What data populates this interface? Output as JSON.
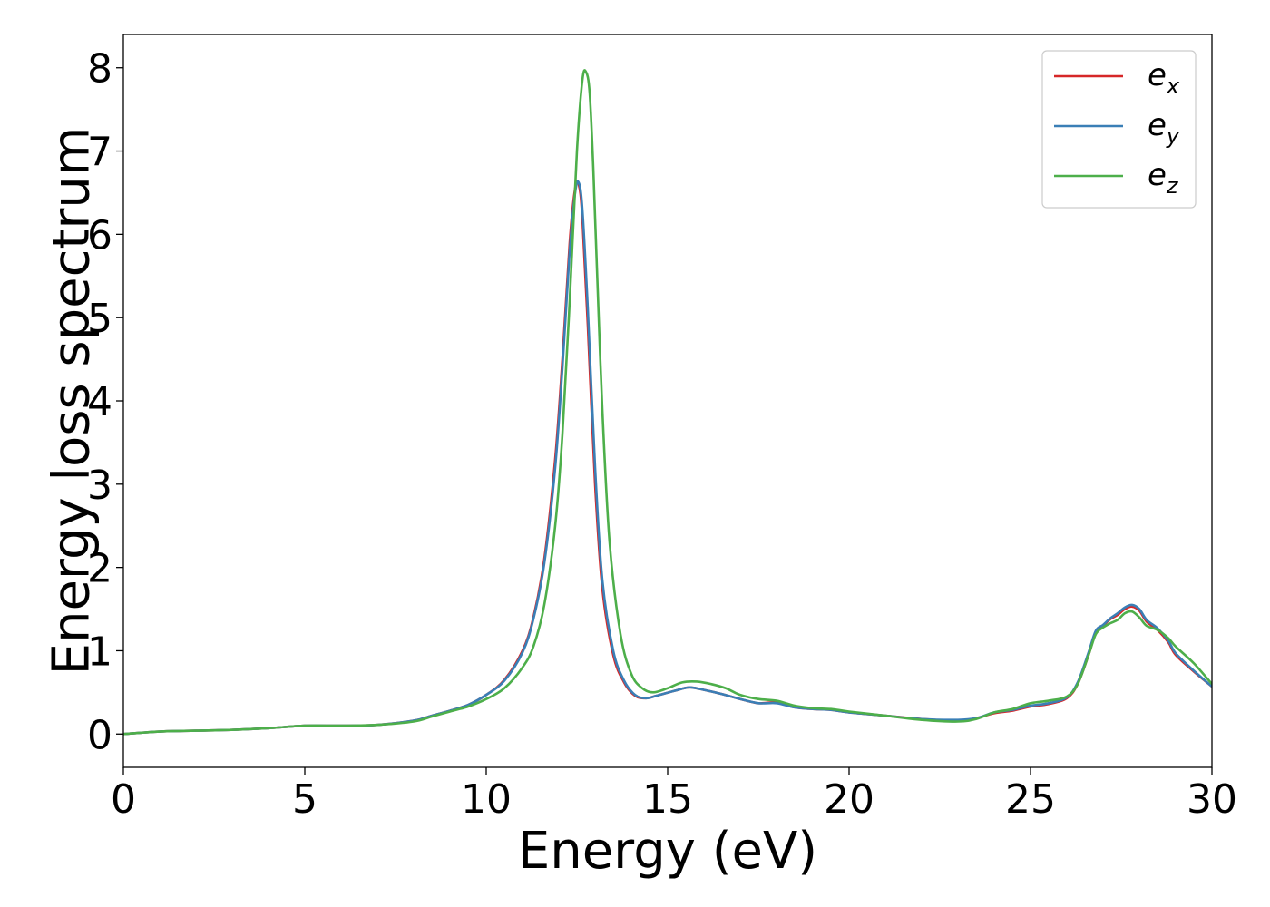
{
  "chart_data": {
    "type": "line",
    "xlabel": "Energy (eV)",
    "ylabel": "Energy loss spectrum",
    "xlim": [
      0,
      30
    ],
    "ylim": [
      -0.4,
      8.4
    ],
    "xticks": [
      "0",
      "5",
      "10",
      "15",
      "20",
      "25",
      "30"
    ],
    "yticks": [
      "0",
      "1",
      "2",
      "3",
      "4",
      "5",
      "6",
      "7",
      "8"
    ],
    "grid": false,
    "legend_position": "top-right",
    "series": [
      {
        "name": "e",
        "subscript": "x",
        "color": "#d62728",
        "x": [
          0,
          1,
          2,
          3,
          4,
          5,
          6,
          7,
          8,
          8.5,
          9,
          9.5,
          10,
          10.5,
          11,
          11.3,
          11.6,
          11.9,
          12.1,
          12.3,
          12.45,
          12.55,
          12.65,
          12.8,
          13.0,
          13.2,
          13.5,
          13.8,
          14.1,
          14.4,
          14.7,
          15.2,
          15.6,
          16.0,
          16.5,
          17.0,
          17.5,
          18.0,
          18.5,
          19.0,
          19.5,
          20.0,
          21.0,
          22.0,
          23.0,
          23.5,
          24.0,
          24.5,
          25.0,
          25.5,
          26.0,
          26.3,
          26.6,
          26.8,
          27.0,
          27.2,
          27.4,
          27.6,
          27.8,
          28.0,
          28.2,
          28.5,
          28.8,
          29.0,
          29.5,
          30.0
        ],
        "y": [
          0.0,
          0.03,
          0.04,
          0.05,
          0.07,
          0.1,
          0.1,
          0.11,
          0.16,
          0.22,
          0.28,
          0.35,
          0.47,
          0.65,
          1.0,
          1.4,
          2.1,
          3.3,
          4.5,
          5.9,
          6.55,
          6.6,
          6.2,
          4.9,
          3.0,
          1.75,
          0.95,
          0.62,
          0.46,
          0.43,
          0.46,
          0.52,
          0.56,
          0.53,
          0.48,
          0.42,
          0.37,
          0.38,
          0.32,
          0.3,
          0.29,
          0.26,
          0.22,
          0.18,
          0.16,
          0.19,
          0.25,
          0.28,
          0.33,
          0.36,
          0.43,
          0.6,
          0.95,
          1.22,
          1.3,
          1.38,
          1.43,
          1.5,
          1.53,
          1.48,
          1.35,
          1.25,
          1.1,
          0.95,
          0.75,
          0.57
        ]
      },
      {
        "name": "e",
        "subscript": "y",
        "color": "#3a7fb6",
        "x": [
          0,
          1,
          2,
          3,
          4,
          5,
          6,
          7,
          8,
          8.5,
          9,
          9.5,
          10,
          10.5,
          11,
          11.3,
          11.6,
          11.9,
          12.1,
          12.3,
          12.45,
          12.55,
          12.65,
          12.8,
          13.0,
          13.2,
          13.5,
          13.8,
          14.1,
          14.4,
          14.7,
          15.2,
          15.6,
          16.0,
          16.5,
          17.0,
          17.5,
          18.0,
          18.5,
          19.0,
          19.5,
          20.0,
          21.0,
          22.0,
          23.0,
          23.5,
          24.0,
          24.5,
          25.0,
          25.5,
          26.0,
          26.3,
          26.6,
          26.8,
          27.0,
          27.2,
          27.4,
          27.6,
          27.8,
          28.0,
          28.2,
          28.5,
          28.8,
          29.0,
          29.5,
          30.0
        ],
        "y": [
          0.0,
          0.03,
          0.04,
          0.05,
          0.07,
          0.1,
          0.1,
          0.11,
          0.16,
          0.22,
          0.28,
          0.35,
          0.47,
          0.64,
          0.98,
          1.38,
          2.05,
          3.2,
          4.4,
          5.8,
          6.5,
          6.62,
          6.3,
          5.1,
          3.2,
          1.85,
          1.0,
          0.64,
          0.47,
          0.43,
          0.46,
          0.52,
          0.56,
          0.53,
          0.48,
          0.42,
          0.37,
          0.37,
          0.32,
          0.3,
          0.29,
          0.26,
          0.22,
          0.18,
          0.17,
          0.19,
          0.26,
          0.29,
          0.34,
          0.37,
          0.44,
          0.62,
          0.98,
          1.24,
          1.31,
          1.39,
          1.45,
          1.52,
          1.55,
          1.5,
          1.37,
          1.27,
          1.12,
          0.97,
          0.76,
          0.57
        ]
      },
      {
        "name": "e",
        "subscript": "z",
        "color": "#4daf4a",
        "x": [
          0,
          1,
          2,
          3,
          4,
          5,
          6,
          7,
          8,
          8.5,
          9,
          9.5,
          10,
          10.5,
          11,
          11.3,
          11.6,
          11.9,
          12.1,
          12.3,
          12.5,
          12.65,
          12.75,
          12.85,
          12.95,
          13.05,
          13.2,
          13.4,
          13.7,
          14.0,
          14.3,
          14.6,
          15.0,
          15.4,
          15.8,
          16.2,
          16.6,
          17.0,
          17.5,
          18.0,
          18.5,
          19.0,
          19.5,
          20.0,
          21.0,
          22.0,
          23.0,
          23.5,
          24.0,
          24.5,
          25.0,
          25.5,
          26.0,
          26.3,
          26.6,
          26.8,
          27.0,
          27.2,
          27.4,
          27.6,
          27.8,
          28.0,
          28.2,
          28.5,
          28.8,
          29.0,
          29.5,
          30.0
        ],
        "y": [
          0.0,
          0.03,
          0.04,
          0.05,
          0.07,
          0.1,
          0.1,
          0.11,
          0.15,
          0.21,
          0.27,
          0.33,
          0.42,
          0.55,
          0.8,
          1.05,
          1.55,
          2.5,
          3.6,
          5.2,
          7.0,
          7.85,
          7.95,
          7.7,
          6.8,
          5.6,
          3.9,
          2.3,
          1.2,
          0.72,
          0.55,
          0.5,
          0.55,
          0.62,
          0.63,
          0.6,
          0.55,
          0.47,
          0.42,
          0.4,
          0.34,
          0.31,
          0.3,
          0.27,
          0.22,
          0.17,
          0.15,
          0.18,
          0.26,
          0.3,
          0.37,
          0.4,
          0.45,
          0.6,
          0.95,
          1.2,
          1.28,
          1.33,
          1.37,
          1.45,
          1.47,
          1.4,
          1.3,
          1.25,
          1.15,
          1.05,
          0.85,
          0.6
        ]
      }
    ]
  }
}
